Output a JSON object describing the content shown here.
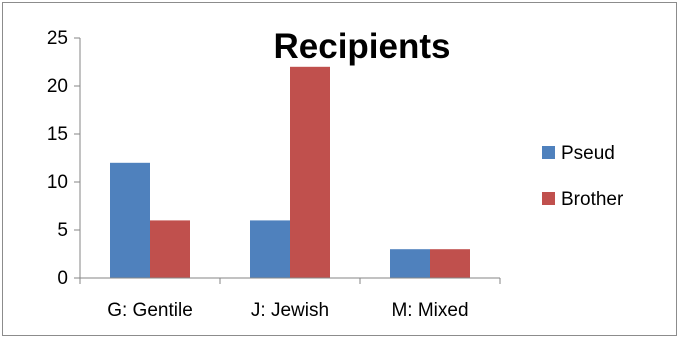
{
  "chart_data": {
    "type": "bar",
    "title": "Recipients",
    "categories": [
      "G: Gentile",
      "J: Jewish",
      "M: Mixed"
    ],
    "series": [
      {
        "name": "Pseud",
        "color": "#4f81bd",
        "values": [
          12,
          6,
          3
        ]
      },
      {
        "name": "Brother",
        "color": "#c0504d",
        "values": [
          6,
          22,
          3
        ]
      }
    ],
    "ylim": [
      0,
      25
    ],
    "yticks": [
      0,
      5,
      10,
      15,
      20,
      25
    ],
    "grid": false,
    "legend": "right"
  }
}
